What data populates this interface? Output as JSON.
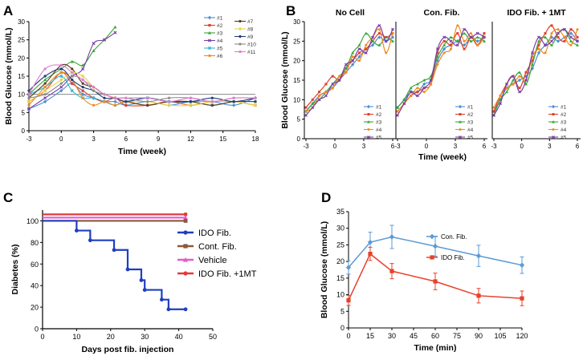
{
  "panels": {
    "a": "A",
    "b": "B",
    "c": "C",
    "d": "D"
  },
  "chart_data": [
    {
      "panel": "A",
      "type": "line",
      "ylabel": "Blood Glucose (mmol/L)",
      "xlabel": "Time (week)",
      "xticks": [
        -3,
        0,
        3,
        6,
        9,
        12,
        15,
        18
      ],
      "yticks": [
        0,
        5,
        10,
        15,
        20,
        25,
        30
      ],
      "xlim": [
        -3,
        18
      ],
      "ylim": [
        0,
        30
      ],
      "reference_y": 10,
      "series": [
        {
          "name": "#1",
          "color": "#4a8fd4",
          "x": [
            -3,
            -1.5,
            0,
            1,
            2,
            3,
            4,
            5,
            6,
            8,
            10,
            12,
            14,
            16,
            18
          ],
          "y": [
            6,
            8,
            11,
            13,
            10,
            9,
            8,
            8,
            7,
            8,
            7,
            8,
            8,
            7,
            9
          ]
        },
        {
          "name": "#2",
          "color": "#e0402a",
          "x": [
            -3,
            -1.5,
            0,
            1,
            2,
            3,
            4,
            5,
            6,
            8,
            10,
            12,
            14,
            16,
            18
          ],
          "y": [
            8,
            11,
            16,
            13,
            11,
            9,
            8,
            9,
            7,
            7,
            8,
            7,
            8,
            8,
            7
          ]
        },
        {
          "name": "#3",
          "color": "#3aa63a",
          "x": [
            -3,
            -1.5,
            0,
            1,
            2,
            3,
            4,
            5
          ],
          "y": [
            10,
            14,
            17,
            19,
            18,
            22,
            25,
            28.5
          ]
        },
        {
          "name": "#4",
          "color": "#7a3fa6",
          "x": [
            -3,
            -1.5,
            0,
            1,
            2,
            3,
            4,
            5
          ],
          "y": [
            6,
            9,
            12,
            15,
            17,
            24,
            25,
            27
          ]
        },
        {
          "name": "#5",
          "color": "#3ab4d4",
          "x": [
            -3,
            -1.5,
            0,
            1,
            2,
            3,
            4,
            5,
            6,
            8,
            10,
            12,
            14,
            16,
            18
          ],
          "y": [
            10,
            12,
            15,
            11,
            9,
            9,
            8,
            7,
            8,
            9,
            8,
            8,
            7,
            8,
            8
          ]
        },
        {
          "name": "#6",
          "color": "#f28a1e",
          "x": [
            -3,
            -1.5,
            0,
            1,
            2,
            3,
            4,
            5,
            6,
            8,
            10,
            12,
            14,
            16,
            18
          ],
          "y": [
            7,
            12,
            16,
            14,
            9,
            7,
            8,
            7,
            8,
            7,
            8,
            7,
            8,
            8,
            7
          ]
        },
        {
          "name": "#7",
          "color": "#5a3a20",
          "x": [
            -3,
            -1.5,
            0,
            1,
            2,
            3,
            4,
            5,
            6,
            8,
            10,
            12,
            14,
            16,
            18
          ],
          "y": [
            9,
            13,
            18,
            17,
            13,
            12,
            10,
            9,
            8,
            7,
            8,
            8,
            7,
            8,
            8
          ]
        },
        {
          "name": "#8",
          "color": "#e8d44a",
          "x": [
            -3,
            -1.5,
            0,
            1,
            2,
            3,
            4,
            5,
            6,
            8,
            10,
            12,
            14,
            16,
            18
          ],
          "y": [
            8,
            11,
            14,
            16,
            15,
            12,
            10,
            9,
            8,
            8,
            7,
            7,
            8,
            8,
            7
          ]
        },
        {
          "name": "#9",
          "color": "#1f3d7a",
          "x": [
            -3,
            -1.5,
            0,
            1,
            2,
            3,
            4,
            5,
            6,
            8,
            10,
            12,
            14,
            16,
            18
          ],
          "y": [
            11,
            15,
            17,
            14,
            12,
            11,
            9,
            9,
            8,
            9,
            8,
            8,
            9,
            8,
            9
          ]
        },
        {
          "name": "#10",
          "color": "#8a8a8a",
          "x": [
            -3,
            -1.5,
            0,
            1,
            2,
            3,
            4,
            5,
            6,
            8,
            10,
            12,
            14,
            16,
            18
          ],
          "y": [
            9,
            10,
            13,
            15,
            14,
            11,
            10,
            9,
            9,
            8,
            9,
            9,
            8,
            9,
            9
          ]
        },
        {
          "name": "#11",
          "color": "#e27ad4",
          "x": [
            -3,
            -1.5,
            0,
            1,
            2,
            3,
            4,
            5,
            6,
            8,
            10,
            12,
            14,
            16,
            18
          ],
          "y": [
            10,
            17,
            18,
            16,
            14,
            12,
            10,
            9,
            9,
            9,
            8,
            9,
            8,
            9,
            9
          ]
        }
      ]
    },
    {
      "panel": "B",
      "type": "line",
      "ylabel": "Blood Glucose (mmol/L)",
      "xlabel": "Time (week)",
      "xticks": [
        -3,
        0,
        3,
        6
      ],
      "yticks": [
        0,
        5,
        10,
        15,
        20,
        25,
        30
      ],
      "xlim": [
        -3,
        6
      ],
      "ylim": [
        0,
        30
      ],
      "legend": [
        "#1",
        "#2",
        "#3",
        "#4",
        "#5"
      ],
      "colors": [
        "#4a8fd4",
        "#e0402a",
        "#3aa63a",
        "#f28a1e",
        "#7a3fa6"
      ],
      "subplots": [
        {
          "title": "No Cell",
          "series": [
            {
              "name": "#1",
              "y": [
                7,
                9,
                11,
                12,
                13,
                15,
                17,
                19,
                21,
                23,
                24,
                26,
                25,
                26
              ]
            },
            {
              "name": "#2",
              "y": [
                8,
                10,
                12,
                14,
                16,
                15,
                18,
                20,
                22,
                23,
                25,
                27,
                26,
                27
              ]
            },
            {
              "name": "#3",
              "y": [
                7,
                9,
                10,
                12,
                14,
                16,
                18,
                22,
                24,
                27,
                25,
                24,
                26,
                25
              ]
            },
            {
              "name": "#4",
              "y": [
                7,
                8,
                11,
                12,
                13,
                16,
                17,
                21,
                20,
                24,
                26,
                28,
                22,
                27
              ]
            },
            {
              "name": "#5",
              "y": [
                6,
                8,
                10,
                11,
                14,
                15,
                19,
                20,
                23,
                22,
                26,
                29,
                25,
                28
              ]
            }
          ]
        },
        {
          "title": "Con. Fib.",
          "series": [
            {
              "name": "#1",
              "y": [
                8,
                10,
                12,
                12,
                14,
                15,
                20,
                23,
                24,
                25,
                24,
                26,
                25,
                26
              ]
            },
            {
              "name": "#2",
              "y": [
                7,
                9,
                11,
                12,
                13,
                14,
                22,
                25,
                24,
                27,
                23,
                26,
                24,
                27
              ]
            },
            {
              "name": "#3",
              "y": [
                8,
                10,
                13,
                14,
                15,
                16,
                21,
                24,
                26,
                25,
                27,
                25,
                26,
                25
              ]
            },
            {
              "name": "#4",
              "y": [
                7,
                9,
                11,
                13,
                12,
                14,
                19,
                22,
                23,
                29,
                25,
                27,
                24,
                26
              ]
            },
            {
              "name": "#5",
              "y": [
                6,
                9,
                12,
                11,
                13,
                15,
                23,
                26,
                25,
                24,
                28,
                26,
                27,
                26
              ]
            }
          ]
        },
        {
          "title": "IDO Fib. + 1MT",
          "series": [
            {
              "name": "#1",
              "y": [
                7,
                10,
                13,
                14,
                15,
                16,
                18,
                22,
                24,
                26,
                25,
                26,
                27,
                25
              ]
            },
            {
              "name": "#2",
              "y": [
                7,
                11,
                14,
                16,
                13,
                17,
                20,
                24,
                27,
                29,
                26,
                25,
                28,
                26
              ]
            },
            {
              "name": "#3",
              "y": [
                6,
                10,
                12,
                15,
                17,
                14,
                19,
                25,
                26,
                24,
                27,
                28,
                25,
                24
              ]
            },
            {
              "name": "#4",
              "y": [
                8,
                11,
                13,
                14,
                16,
                15,
                21,
                23,
                22,
                27,
                28,
                26,
                24,
                28
              ]
            },
            {
              "name": "#5",
              "y": [
                6,
                9,
                14,
                16,
                12,
                15,
                22,
                26,
                24,
                25,
                27,
                28,
                26,
                25
              ]
            }
          ]
        }
      ]
    },
    {
      "panel": "C",
      "type": "line",
      "ylabel": "Diabetes (%)",
      "xlabel": "Days post fib. injection",
      "xticks": [
        0,
        10,
        20,
        30,
        40,
        50
      ],
      "yticks": [
        0,
        20,
        40,
        60,
        80,
        100
      ],
      "xlim": [
        0,
        50
      ],
      "ylim": [
        0,
        110
      ],
      "series": [
        {
          "name": "IDO Fib.",
          "color": "#1f3fbf",
          "x": [
            0,
            10,
            14,
            21,
            25,
            29,
            30,
            35,
            37,
            42
          ],
          "y": [
            100,
            91,
            82,
            73,
            55,
            45,
            36,
            27,
            18,
            18
          ]
        },
        {
          "name": "Cont. Fib.",
          "color": "#8a5a3a",
          "x": [
            0,
            42
          ],
          "y": [
            100,
            100
          ]
        },
        {
          "name": "Vehicle",
          "color": "#e35ad4",
          "x": [
            0,
            42
          ],
          "y": [
            103,
            103
          ]
        },
        {
          "name": "IDO Fib. +1MT",
          "color": "#e03a3a",
          "x": [
            0,
            42
          ],
          "y": [
            106,
            106
          ]
        }
      ]
    },
    {
      "panel": "D",
      "type": "line",
      "ylabel": "Blood Glucose (mmol/L)",
      "xlabel": "Time (min)",
      "xticks": [
        0,
        15,
        30,
        45,
        60,
        75,
        90,
        105,
        120
      ],
      "yticks": [
        0,
        5,
        10,
        15,
        20,
        25,
        30,
        35
      ],
      "xlim": [
        0,
        120
      ],
      "ylim": [
        0,
        35
      ],
      "series": [
        {
          "name": "Con. Fib.",
          "color": "#5b9bd5",
          "x": [
            0,
            15,
            30,
            60,
            90,
            120
          ],
          "y": [
            18.2,
            25.8,
            27.4,
            24.6,
            21.7,
            18.9
          ],
          "err": [
            2.0,
            3.0,
            3.5,
            3.0,
            3.2,
            2.5
          ]
        },
        {
          "name": "IDO Fib.",
          "color": "#e8402a",
          "x": [
            0,
            15,
            30,
            60,
            90,
            120
          ],
          "y": [
            8.3,
            22.3,
            17.1,
            14.0,
            9.7,
            8.9
          ],
          "err": [
            1.5,
            2.0,
            2.3,
            2.5,
            2.2,
            2.2
          ]
        }
      ]
    }
  ]
}
